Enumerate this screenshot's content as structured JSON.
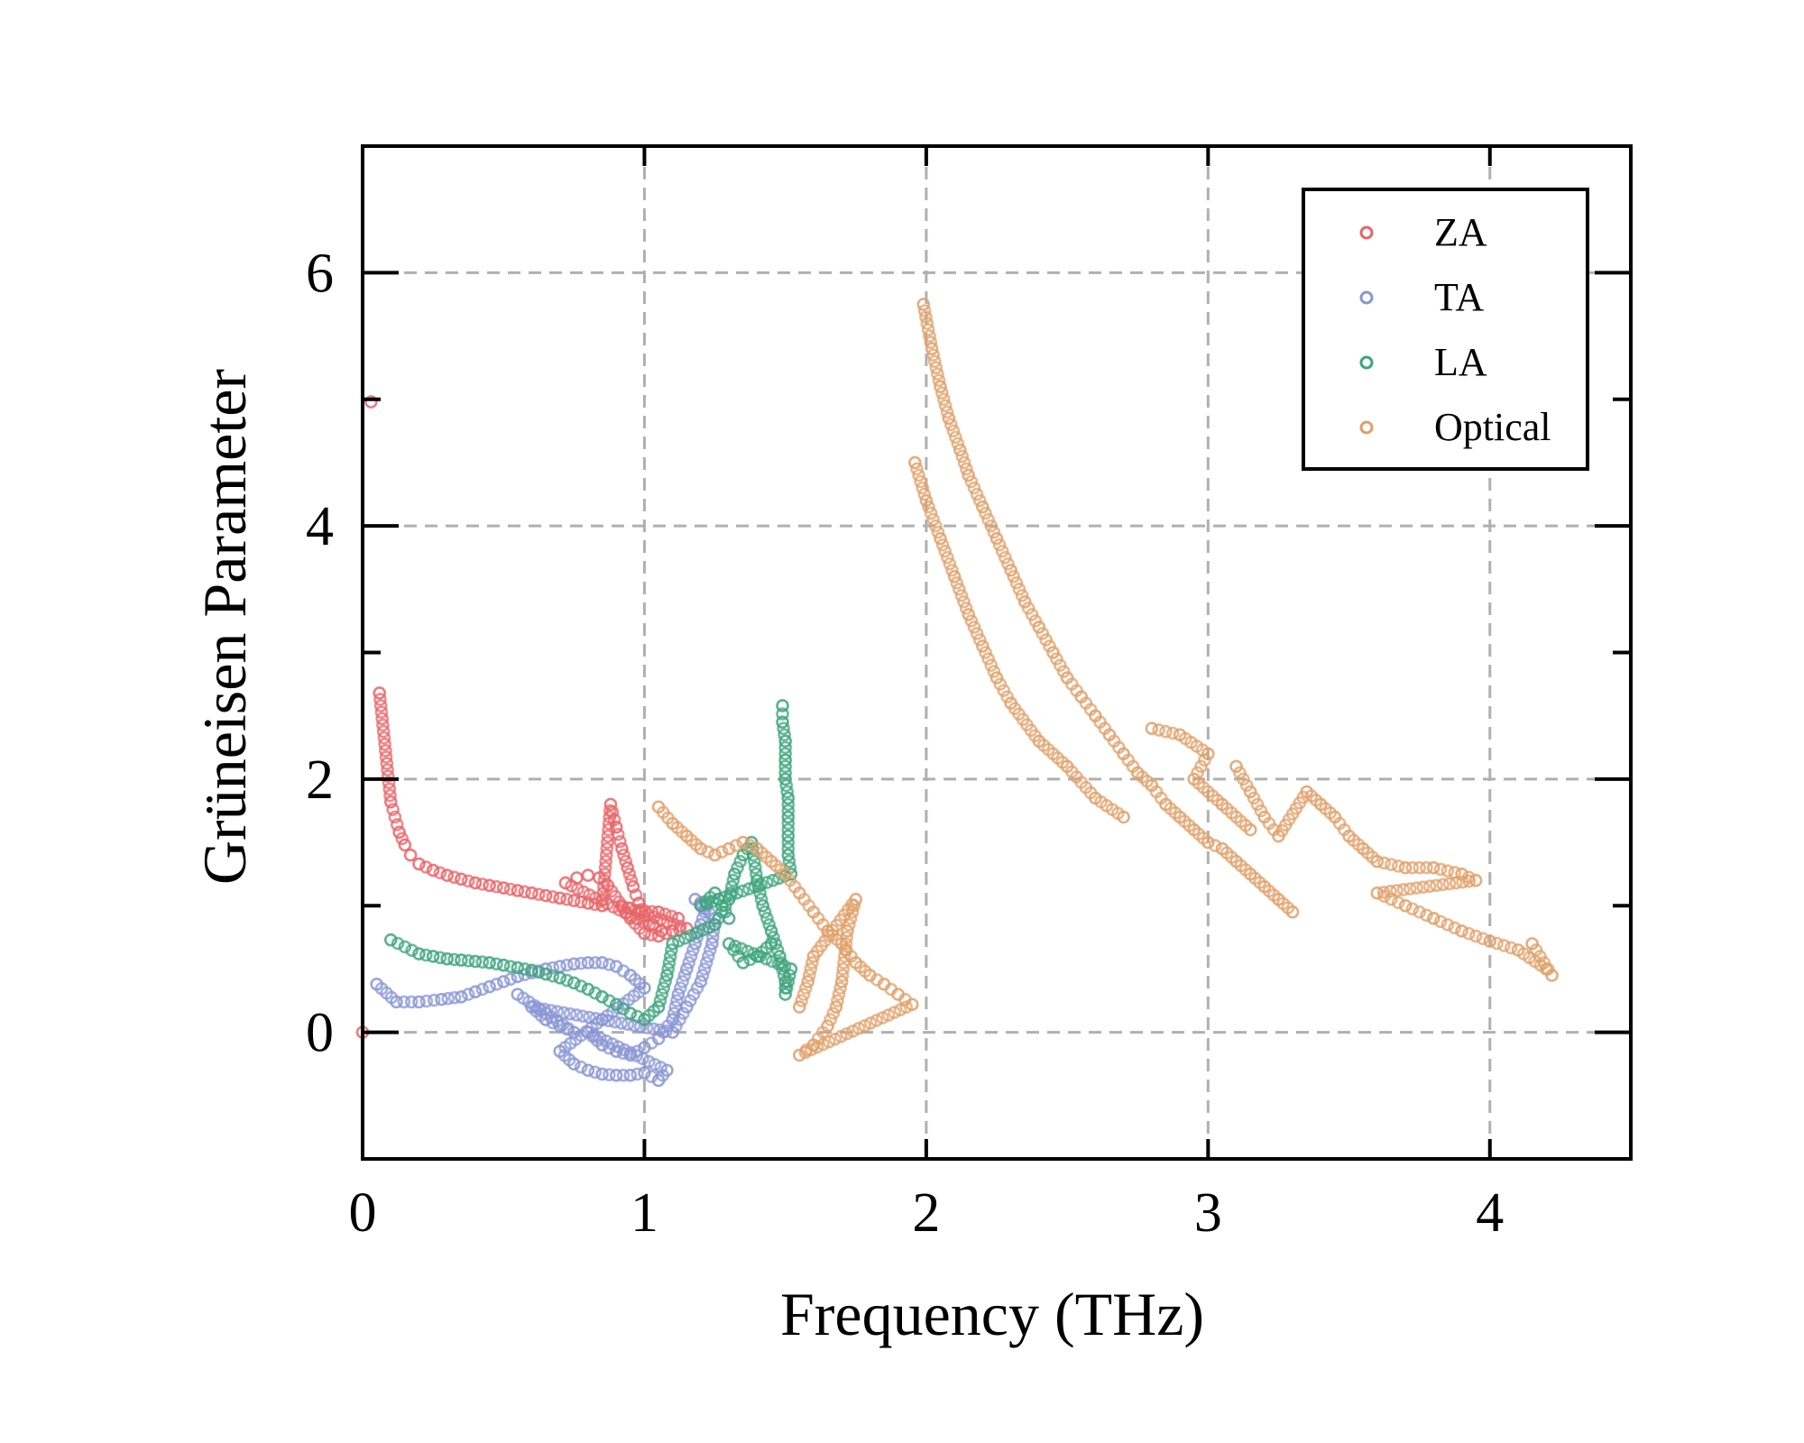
{
  "chart_data": {
    "type": "scatter",
    "title": "",
    "xlabel": "Frequency (THz)",
    "ylabel": "Grüneisen Parameter",
    "xlim": [
      0,
      4.5
    ],
    "ylim": [
      -1,
      7
    ],
    "xticks": [
      0,
      1,
      2,
      3,
      4
    ],
    "yticks": [
      0,
      2,
      4,
      6
    ],
    "grid": true,
    "legend_position": "top-right",
    "marker": "open-circle",
    "series": [
      {
        "name": "ZA",
        "color": "#e8656a",
        "points": [
          [
            0.0,
            0.0
          ],
          [
            0.03,
            4.98
          ],
          [
            0.06,
            2.68
          ],
          [
            0.1,
            1.82
          ],
          [
            0.13,
            1.58
          ],
          [
            0.15,
            1.48
          ],
          [
            0.17,
            1.4
          ],
          [
            0.2,
            1.33
          ],
          [
            0.25,
            1.28
          ],
          [
            0.3,
            1.24
          ],
          [
            0.35,
            1.21
          ],
          [
            0.4,
            1.18
          ],
          [
            0.45,
            1.16
          ],
          [
            0.5,
            1.14
          ],
          [
            0.55,
            1.12
          ],
          [
            0.6,
            1.1
          ],
          [
            0.65,
            1.08
          ],
          [
            0.7,
            1.06
          ],
          [
            0.75,
            1.04
          ],
          [
            0.8,
            1.02
          ],
          [
            0.85,
            1.0
          ],
          [
            0.88,
            1.8
          ],
          [
            0.9,
            1.62
          ],
          [
            0.92,
            1.45
          ],
          [
            0.94,
            1.3
          ],
          [
            0.96,
            1.15
          ],
          [
            0.98,
            1.02
          ],
          [
            1.0,
            0.92
          ],
          [
            1.03,
            0.85
          ],
          [
            1.06,
            0.8
          ],
          [
            0.72,
            1.18
          ],
          [
            0.76,
            1.22
          ],
          [
            0.8,
            1.24
          ],
          [
            0.84,
            1.22
          ],
          [
            0.87,
            1.16
          ],
          [
            0.95,
            0.9
          ],
          [
            1.0,
            0.78
          ],
          [
            1.05,
            0.76
          ],
          [
            1.1,
            0.8
          ],
          [
            1.15,
            0.82
          ],
          [
            0.92,
            1.0
          ],
          [
            0.98,
            0.96
          ],
          [
            1.05,
            0.95
          ],
          [
            1.12,
            0.9
          ]
        ]
      },
      {
        "name": "TA",
        "color": "#8a96d4",
        "points": [
          [
            0.05,
            0.38
          ],
          [
            0.12,
            0.24
          ],
          [
            0.2,
            0.24
          ],
          [
            0.28,
            0.26
          ],
          [
            0.35,
            0.28
          ],
          [
            0.4,
            0.32
          ],
          [
            0.45,
            0.36
          ],
          [
            0.5,
            0.4
          ],
          [
            0.55,
            0.44
          ],
          [
            0.6,
            0.47
          ],
          [
            0.65,
            0.5
          ],
          [
            0.7,
            0.52
          ],
          [
            0.75,
            0.54
          ],
          [
            0.8,
            0.55
          ],
          [
            0.85,
            0.55
          ],
          [
            0.9,
            0.52
          ],
          [
            0.95,
            0.45
          ],
          [
            1.0,
            0.35
          ],
          [
            0.7,
            -0.15
          ],
          [
            0.75,
            -0.25
          ],
          [
            0.8,
            -0.3
          ],
          [
            0.85,
            -0.33
          ],
          [
            0.9,
            -0.34
          ],
          [
            0.95,
            -0.34
          ],
          [
            1.0,
            -0.32
          ],
          [
            1.05,
            -0.38
          ],
          [
            1.08,
            -0.3
          ],
          [
            0.8,
            0.0
          ],
          [
            0.85,
            -0.1
          ],
          [
            0.9,
            -0.15
          ],
          [
            0.95,
            -0.18
          ],
          [
            1.0,
            -0.12
          ],
          [
            1.05,
            -0.05
          ],
          [
            1.1,
            0.1
          ],
          [
            1.12,
            0.3
          ],
          [
            1.15,
            0.5
          ],
          [
            1.18,
            0.7
          ],
          [
            1.2,
            0.85
          ],
          [
            1.22,
            1.0
          ],
          [
            1.18,
            1.05
          ],
          [
            1.25,
            0.9
          ],
          [
            1.24,
            0.7
          ],
          [
            1.2,
            0.4
          ],
          [
            1.15,
            0.2
          ],
          [
            1.1,
            0.0
          ],
          [
            0.6,
            0.2
          ],
          [
            0.65,
            0.1
          ],
          [
            0.7,
            0.05
          ],
          [
            0.75,
            0.0
          ],
          [
            0.55,
            0.3
          ]
        ]
      },
      {
        "name": "LA",
        "color": "#3ea47e",
        "points": [
          [
            0.1,
            0.73
          ],
          [
            0.2,
            0.62
          ],
          [
            0.25,
            0.6
          ],
          [
            0.3,
            0.58
          ],
          [
            0.35,
            0.57
          ],
          [
            0.4,
            0.56
          ],
          [
            0.45,
            0.55
          ],
          [
            0.5,
            0.53
          ],
          [
            0.55,
            0.51
          ],
          [
            0.6,
            0.49
          ],
          [
            0.65,
            0.46
          ],
          [
            0.7,
            0.43
          ],
          [
            0.75,
            0.39
          ],
          [
            0.8,
            0.34
          ],
          [
            0.85,
            0.28
          ],
          [
            0.9,
            0.22
          ],
          [
            0.95,
            0.15
          ],
          [
            1.0,
            0.1
          ],
          [
            1.05,
            0.2
          ],
          [
            1.08,
            0.45
          ],
          [
            1.1,
            0.7
          ],
          [
            1.25,
            0.85
          ],
          [
            1.3,
            1.05
          ],
          [
            1.32,
            1.25
          ],
          [
            1.35,
            1.4
          ],
          [
            1.38,
            1.5
          ],
          [
            1.4,
            1.2
          ],
          [
            1.42,
            1.0
          ],
          [
            1.45,
            0.8
          ],
          [
            1.48,
            0.6
          ],
          [
            1.5,
            0.4
          ],
          [
            1.5,
            0.3
          ],
          [
            1.52,
            0.5
          ],
          [
            1.3,
            0.7
          ],
          [
            1.35,
            0.55
          ],
          [
            1.4,
            0.6
          ],
          [
            1.45,
            0.7
          ],
          [
            1.49,
            2.58
          ],
          [
            1.49,
            2.45
          ],
          [
            1.5,
            2.3
          ],
          [
            1.5,
            2.15
          ],
          [
            1.5,
            2.0
          ],
          [
            1.51,
            1.85
          ],
          [
            1.51,
            1.7
          ],
          [
            1.51,
            1.55
          ],
          [
            1.51,
            1.4
          ],
          [
            1.52,
            1.25
          ],
          [
            1.2,
            1.0
          ],
          [
            1.25,
            1.1
          ],
          [
            1.3,
            0.9
          ]
        ]
      },
      {
        "name": "Optical",
        "color": "#e0a06a",
        "points": [
          [
            1.05,
            1.78
          ],
          [
            1.1,
            1.65
          ],
          [
            1.15,
            1.55
          ],
          [
            1.2,
            1.45
          ],
          [
            1.25,
            1.4
          ],
          [
            1.3,
            1.45
          ],
          [
            1.35,
            1.5
          ],
          [
            1.4,
            1.45
          ],
          [
            1.45,
            1.35
          ],
          [
            1.5,
            1.25
          ],
          [
            1.55,
            1.1
          ],
          [
            1.6,
            0.95
          ],
          [
            1.65,
            0.8
          ],
          [
            1.7,
            0.7
          ],
          [
            1.75,
            0.55
          ],
          [
            1.8,
            0.45
          ],
          [
            1.85,
            0.38
          ],
          [
            1.9,
            0.3
          ],
          [
            1.95,
            0.22
          ],
          [
            1.55,
            -0.18
          ],
          [
            1.6,
            -0.1
          ],
          [
            1.65,
            0.05
          ],
          [
            1.68,
            0.2
          ],
          [
            1.7,
            0.4
          ],
          [
            1.72,
            0.8
          ],
          [
            1.75,
            1.05
          ],
          [
            1.6,
            0.6
          ],
          [
            1.58,
            0.4
          ],
          [
            1.55,
            0.2
          ],
          [
            1.96,
            4.5
          ],
          [
            2.0,
            4.2
          ],
          [
            2.05,
            3.9
          ],
          [
            2.1,
            3.6
          ],
          [
            2.15,
            3.3
          ],
          [
            2.2,
            3.05
          ],
          [
            2.25,
            2.8
          ],
          [
            2.3,
            2.6
          ],
          [
            2.4,
            2.3
          ],
          [
            2.5,
            2.1
          ],
          [
            2.6,
            1.85
          ],
          [
            2.7,
            1.7
          ],
          [
            1.99,
            5.75
          ],
          [
            2.02,
            5.4
          ],
          [
            2.05,
            5.1
          ],
          [
            2.08,
            4.85
          ],
          [
            2.12,
            4.6
          ],
          [
            2.15,
            4.4
          ],
          [
            2.2,
            4.15
          ],
          [
            2.25,
            3.9
          ],
          [
            2.3,
            3.65
          ],
          [
            2.35,
            3.4
          ],
          [
            2.4,
            3.2
          ],
          [
            2.45,
            3.0
          ],
          [
            2.5,
            2.8
          ],
          [
            2.55,
            2.65
          ],
          [
            2.6,
            2.5
          ],
          [
            2.65,
            2.35
          ],
          [
            2.7,
            2.2
          ],
          [
            2.75,
            2.05
          ],
          [
            2.8,
            1.95
          ],
          [
            2.85,
            1.8
          ],
          [
            2.9,
            1.7
          ],
          [
            2.95,
            1.6
          ],
          [
            3.0,
            1.5
          ],
          [
            3.05,
            1.45
          ],
          [
            3.1,
            1.35
          ],
          [
            3.15,
            1.25
          ],
          [
            3.2,
            1.15
          ],
          [
            3.25,
            1.05
          ],
          [
            3.3,
            0.95
          ],
          [
            3.1,
            2.1
          ],
          [
            3.15,
            1.9
          ],
          [
            3.2,
            1.7
          ],
          [
            3.25,
            1.55
          ],
          [
            3.35,
            1.9
          ],
          [
            3.4,
            1.8
          ],
          [
            3.45,
            1.7
          ],
          [
            3.5,
            1.55
          ],
          [
            3.55,
            1.45
          ],
          [
            3.6,
            1.35
          ],
          [
            3.7,
            1.3
          ],
          [
            3.8,
            1.3
          ],
          [
            3.9,
            1.25
          ],
          [
            3.95,
            1.2
          ],
          [
            3.6,
            1.1
          ],
          [
            3.7,
            1.0
          ],
          [
            3.8,
            0.9
          ],
          [
            3.9,
            0.8
          ],
          [
            4.0,
            0.72
          ],
          [
            4.1,
            0.65
          ],
          [
            4.2,
            0.5
          ],
          [
            4.22,
            0.45
          ],
          [
            4.15,
            0.7
          ],
          [
            2.8,
            2.4
          ],
          [
            2.9,
            2.35
          ],
          [
            3.0,
            2.2
          ],
          [
            2.95,
            2.0
          ],
          [
            3.05,
            1.8
          ],
          [
            3.15,
            1.6
          ]
        ]
      }
    ]
  }
}
